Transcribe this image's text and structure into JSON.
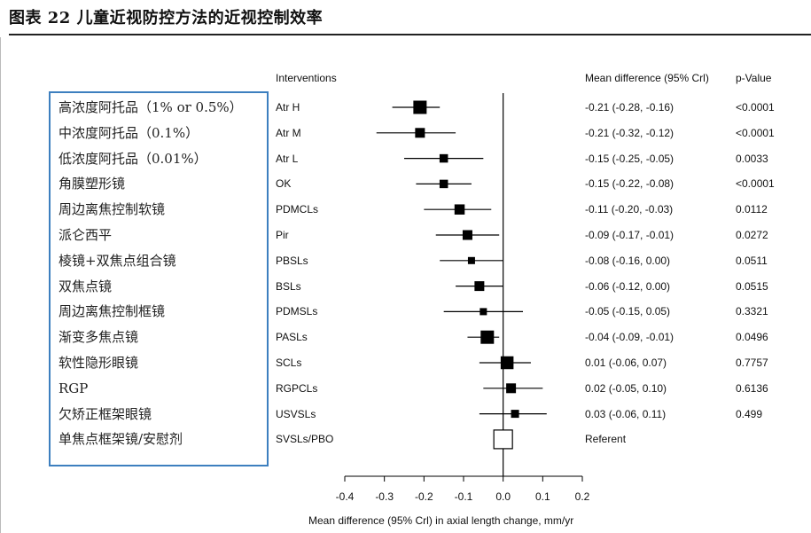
{
  "title": "图表 22 儿童近视防控方法的近视控制效率",
  "headers": {
    "interventions": "Interventions",
    "mean_diff": "Mean difference (95% Crl)",
    "p_value": "p-Value"
  },
  "colors": {
    "box_border": "#3d7fbf",
    "marker": "#000000"
  },
  "chart_data": {
    "type": "forest",
    "xlabel": "Mean difference (95% Crl) in axial length change, mm/yr",
    "xlim": [
      -0.4,
      0.2
    ],
    "ticks": [
      "-0.4",
      "-0.3",
      "-0.2",
      "-0.1",
      "0.0",
      "0.1",
      "0.2"
    ],
    "tick_values": [
      -0.4,
      -0.3,
      -0.2,
      -0.1,
      0.0,
      0.1,
      0.2
    ],
    "reference_line": 0.0,
    "rows": [
      {
        "zh": "高浓度阿托品（1% or 0.5%）",
        "abbr": "Atr H",
        "md": -0.21,
        "lo": -0.28,
        "hi": -0.16,
        "md_text": "-0.21 (-0.28, -0.16)",
        "p": "<0.0001",
        "weight": 1.0
      },
      {
        "zh": "中浓度阿托品（0.1%）",
        "abbr": "Atr M",
        "md": -0.21,
        "lo": -0.32,
        "hi": -0.12,
        "md_text": "-0.21 (-0.32, -0.12)",
        "p": "<0.0001",
        "weight": 0.6
      },
      {
        "zh": "低浓度阿托品（0.01%）",
        "abbr": "Atr L",
        "md": -0.15,
        "lo": -0.25,
        "hi": -0.05,
        "md_text": "-0.15 (-0.25, -0.05)",
        "p": "0.0033",
        "weight": 0.45
      },
      {
        "zh": "角膜塑形镜",
        "abbr": "OK",
        "md": -0.15,
        "lo": -0.22,
        "hi": -0.08,
        "md_text": "-0.15 (-0.22, -0.08)",
        "p": "<0.0001",
        "weight": 0.45
      },
      {
        "zh": "周边离焦控制软镜",
        "abbr": "PDMCLs",
        "md": -0.11,
        "lo": -0.2,
        "hi": -0.03,
        "md_text": "-0.11 (-0.20, -0.03)",
        "p": "0.0112",
        "weight": 0.65
      },
      {
        "zh": "派仑西平",
        "abbr": "Pir",
        "md": -0.09,
        "lo": -0.17,
        "hi": -0.01,
        "md_text": "-0.09 (-0.17, -0.01)",
        "p": "0.0272",
        "weight": 0.6
      },
      {
        "zh": "棱镜+双焦点组合镜",
        "abbr": "PBSLs",
        "md": -0.08,
        "lo": -0.16,
        "hi": 0.0,
        "md_text": "-0.08 (-0.16, 0.00)",
        "p": "0.0511",
        "weight": 0.3
      },
      {
        "zh": "双焦点镜",
        "abbr": "BSLs",
        "md": -0.06,
        "lo": -0.12,
        "hi": 0.0,
        "md_text": "-0.06 (-0.12, 0.00)",
        "p": "0.0515",
        "weight": 0.6
      },
      {
        "zh": "周边离焦控制框镜",
        "abbr": "PDMSLs",
        "md": -0.05,
        "lo": -0.15,
        "hi": 0.05,
        "md_text": "-0.05 (-0.15, 0.05)",
        "p": "0.3321",
        "weight": 0.3
      },
      {
        "zh": "渐变多焦点镜",
        "abbr": "PASLs",
        "md": -0.04,
        "lo": -0.09,
        "hi": -0.01,
        "md_text": "-0.04 (-0.09, -0.01)",
        "p": "0.0496",
        "weight": 1.0
      },
      {
        "zh": "软性隐形眼镜",
        "abbr": "SCLs",
        "md": 0.01,
        "lo": -0.06,
        "hi": 0.07,
        "md_text": "0.01 (-0.06, 0.07)",
        "p": "0.7757",
        "weight": 0.95
      },
      {
        "zh": "RGP",
        "abbr": "RGPCLs",
        "md": 0.02,
        "lo": -0.05,
        "hi": 0.1,
        "md_text": "0.02 (-0.05, 0.10)",
        "p": "0.6136",
        "weight": 0.6
      },
      {
        "zh": "欠矫正框架眼镜",
        "abbr": "USVSLs",
        "md": 0.03,
        "lo": -0.06,
        "hi": 0.11,
        "md_text": "0.03 (-0.06, 0.11)",
        "p": "0.499",
        "weight": 0.4
      },
      {
        "zh": "单焦点框架镜/安慰剂",
        "abbr": "SVSLs/PBO",
        "md": 0.0,
        "lo": null,
        "hi": null,
        "md_text": "Referent",
        "p": "",
        "weight": 1.6,
        "open": true
      }
    ]
  }
}
